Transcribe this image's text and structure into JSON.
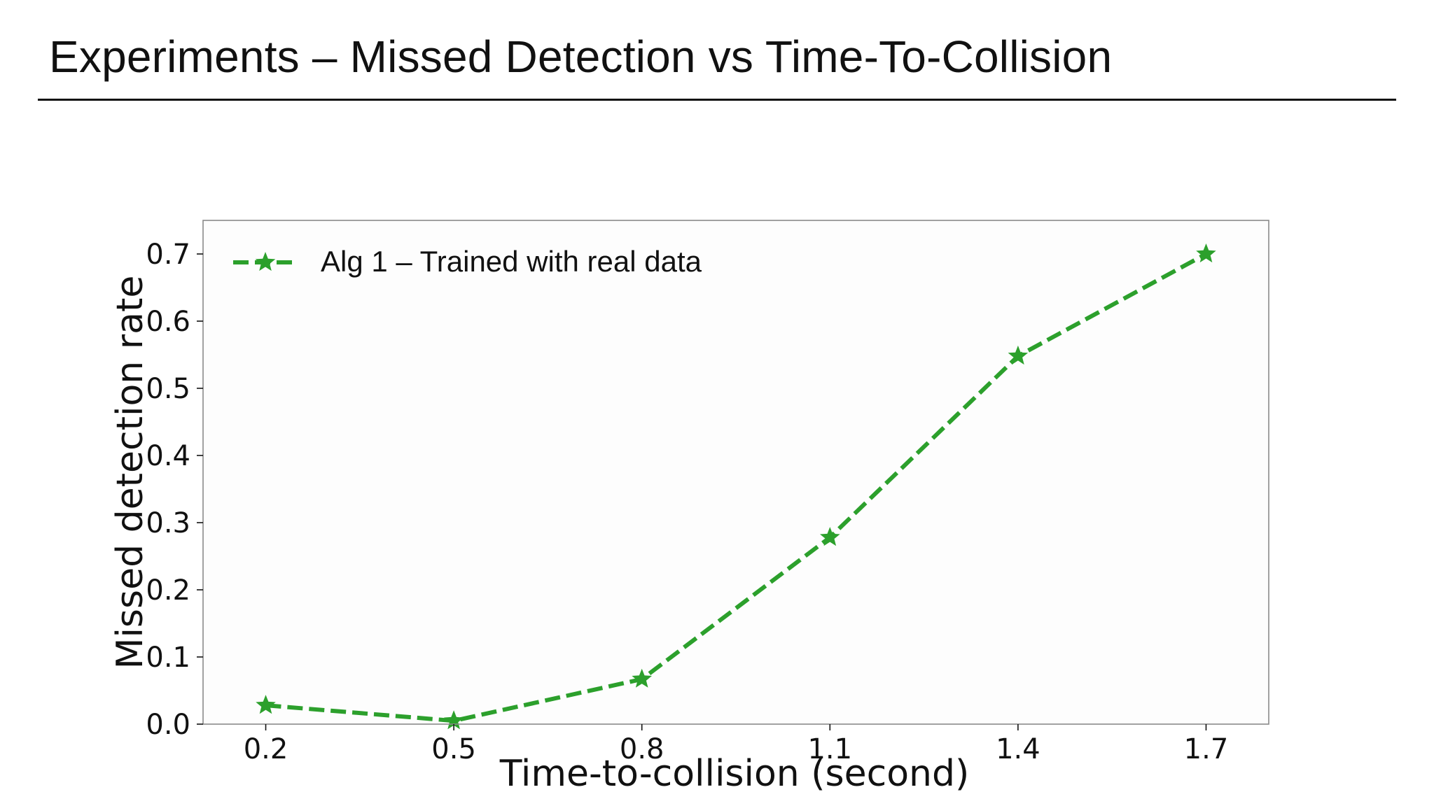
{
  "slide": {
    "title": "Experiments – Missed Detection vs Time-To-Collision"
  },
  "chart_data": {
    "type": "line",
    "title": "",
    "xlabel": "Time-to-collision (second)",
    "ylabel": "Missed detection rate",
    "x": [
      0.2,
      0.5,
      0.8,
      1.1,
      1.4,
      1.7
    ],
    "x_tick_labels": [
      "0.2",
      "0.5",
      "0.8",
      "1.1",
      "1.4",
      "1.7"
    ],
    "y_ticks": [
      0.0,
      0.1,
      0.2,
      0.3,
      0.4,
      0.5,
      0.6,
      0.7
    ],
    "y_tick_labels": [
      "0.0",
      "0.1",
      "0.2",
      "0.3",
      "0.4",
      "0.5",
      "0.6",
      "0.7"
    ],
    "xlim": [
      0.1,
      1.8
    ],
    "ylim": [
      0.0,
      0.75
    ],
    "grid": false,
    "legend_position": "top-left",
    "series": [
      {
        "name": "Alg 1 – Trained with real data",
        "values": [
          0.028,
          0.005,
          0.067,
          0.278,
          0.548,
          0.7
        ],
        "color": "#2ca02c",
        "line_style": "dashed",
        "marker": "star"
      }
    ]
  }
}
